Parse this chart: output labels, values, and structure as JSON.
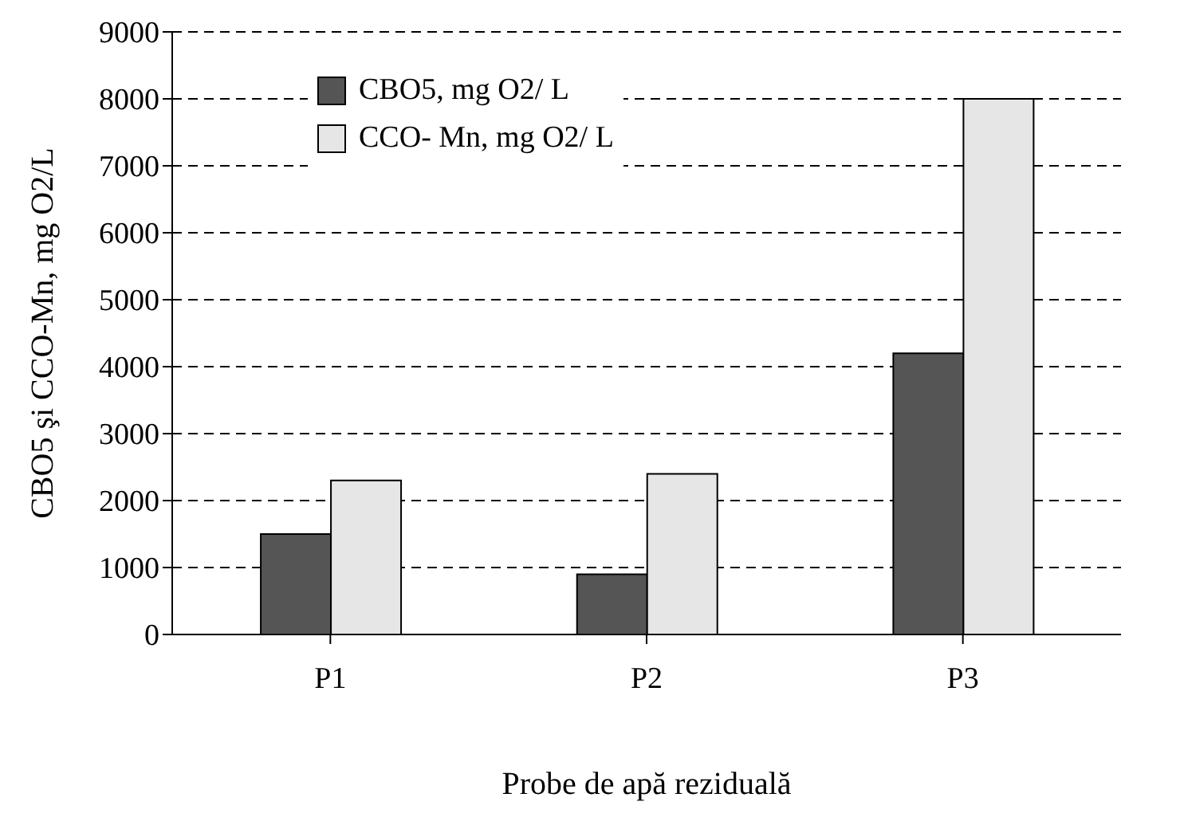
{
  "chart_data": {
    "type": "bar",
    "xlabel": "Probe de apă reziduală",
    "ylabel": "CBO5 şi CCO-Mn, mg O2/L",
    "categories": [
      "P1",
      "P2",
      "P3"
    ],
    "series": [
      {
        "name": "CBO5, mg O2/ L",
        "color": "#555555",
        "values": [
          1500,
          900,
          4200
        ]
      },
      {
        "name": "CCO- Mn, mg O2/ L",
        "color": "#e6e6e6",
        "values": [
          2300,
          2400,
          8000
        ]
      }
    ],
    "ylim": [
      0,
      9000
    ],
    "yticks": [
      0,
      1000,
      2000,
      3000,
      4000,
      5000,
      6000,
      7000,
      8000,
      9000
    ],
    "grid": "y",
    "legend": "top left"
  }
}
